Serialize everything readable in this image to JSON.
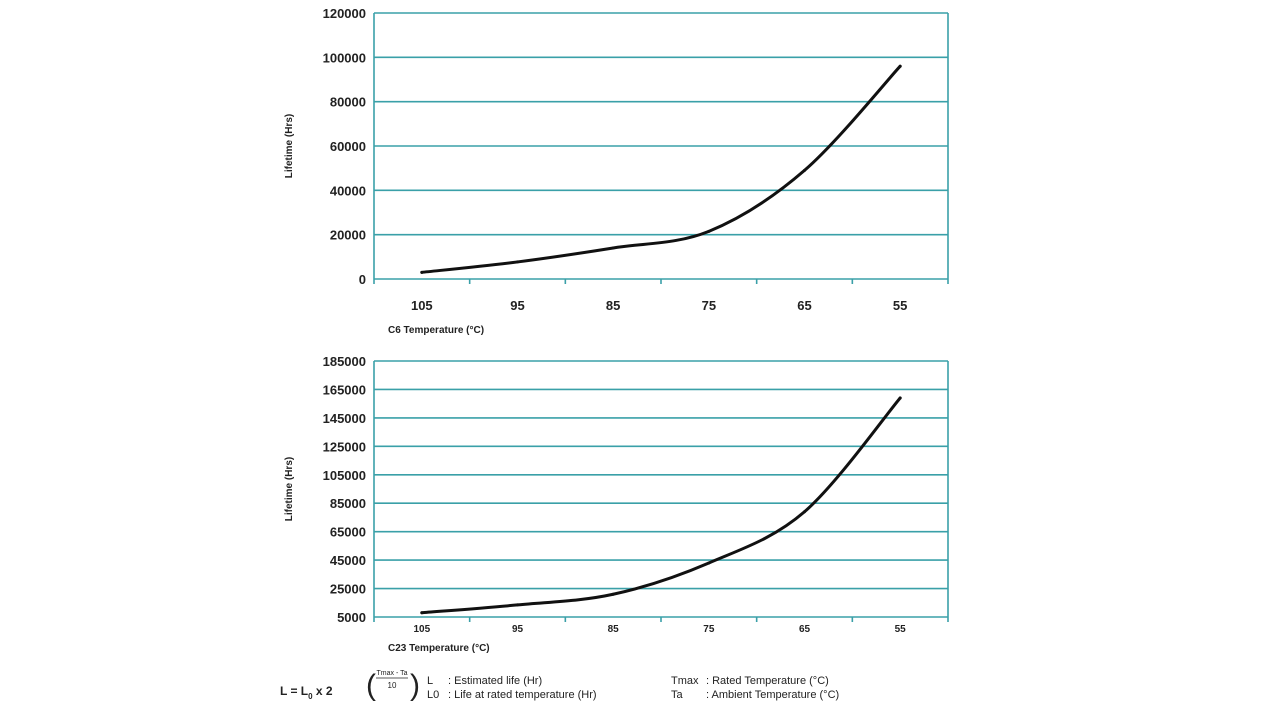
{
  "chart_data": [
    {
      "type": "line",
      "title": "",
      "xlabel": "C6 Temperature (°C)",
      "ylabel": "Lifetime (Hrs)",
      "categories": [
        "105",
        "95",
        "85",
        "75",
        "65",
        "55"
      ],
      "values": [
        3000,
        7700,
        14000,
        21500,
        49000,
        96000
      ],
      "ylim": [
        0,
        120000
      ],
      "yticks": [
        "0",
        "20000",
        "40000",
        "60000",
        "80000",
        "100000",
        "120000"
      ],
      "grid": true
    },
    {
      "type": "line",
      "title": "",
      "xlabel": "C23 Temperature (°C)",
      "ylabel": "Lifetime (Hrs)",
      "categories": [
        "105",
        "95",
        "85",
        "75",
        "65",
        "55"
      ],
      "values": [
        8000,
        13500,
        21000,
        43000,
        79000,
        159000
      ],
      "ylim": [
        5000,
        185000
      ],
      "yticks": [
        "5000",
        "25000",
        "45000",
        "65000",
        "85000",
        "105000",
        "125000",
        "145000",
        "165000",
        "185000"
      ],
      "grid": true
    }
  ],
  "formula": {
    "lhs": "L = L",
    "sub0": "0",
    "times": " x 2",
    "exp_num": "Tmax - Ta",
    "exp_den": "10"
  },
  "legend": [
    {
      "sym": "L",
      "text": ": Estimated life (Hr)"
    },
    {
      "sym": "L0",
      "text": ": Life at rated temperature (Hr)"
    },
    {
      "sym": "Tmax",
      "text": ": Rated Temperature (°C)"
    },
    {
      "sym": "Ta",
      "text": ": Ambient Temperature (°C)"
    }
  ],
  "colors": {
    "grid": "#3aa0a8",
    "line": "#111111"
  }
}
